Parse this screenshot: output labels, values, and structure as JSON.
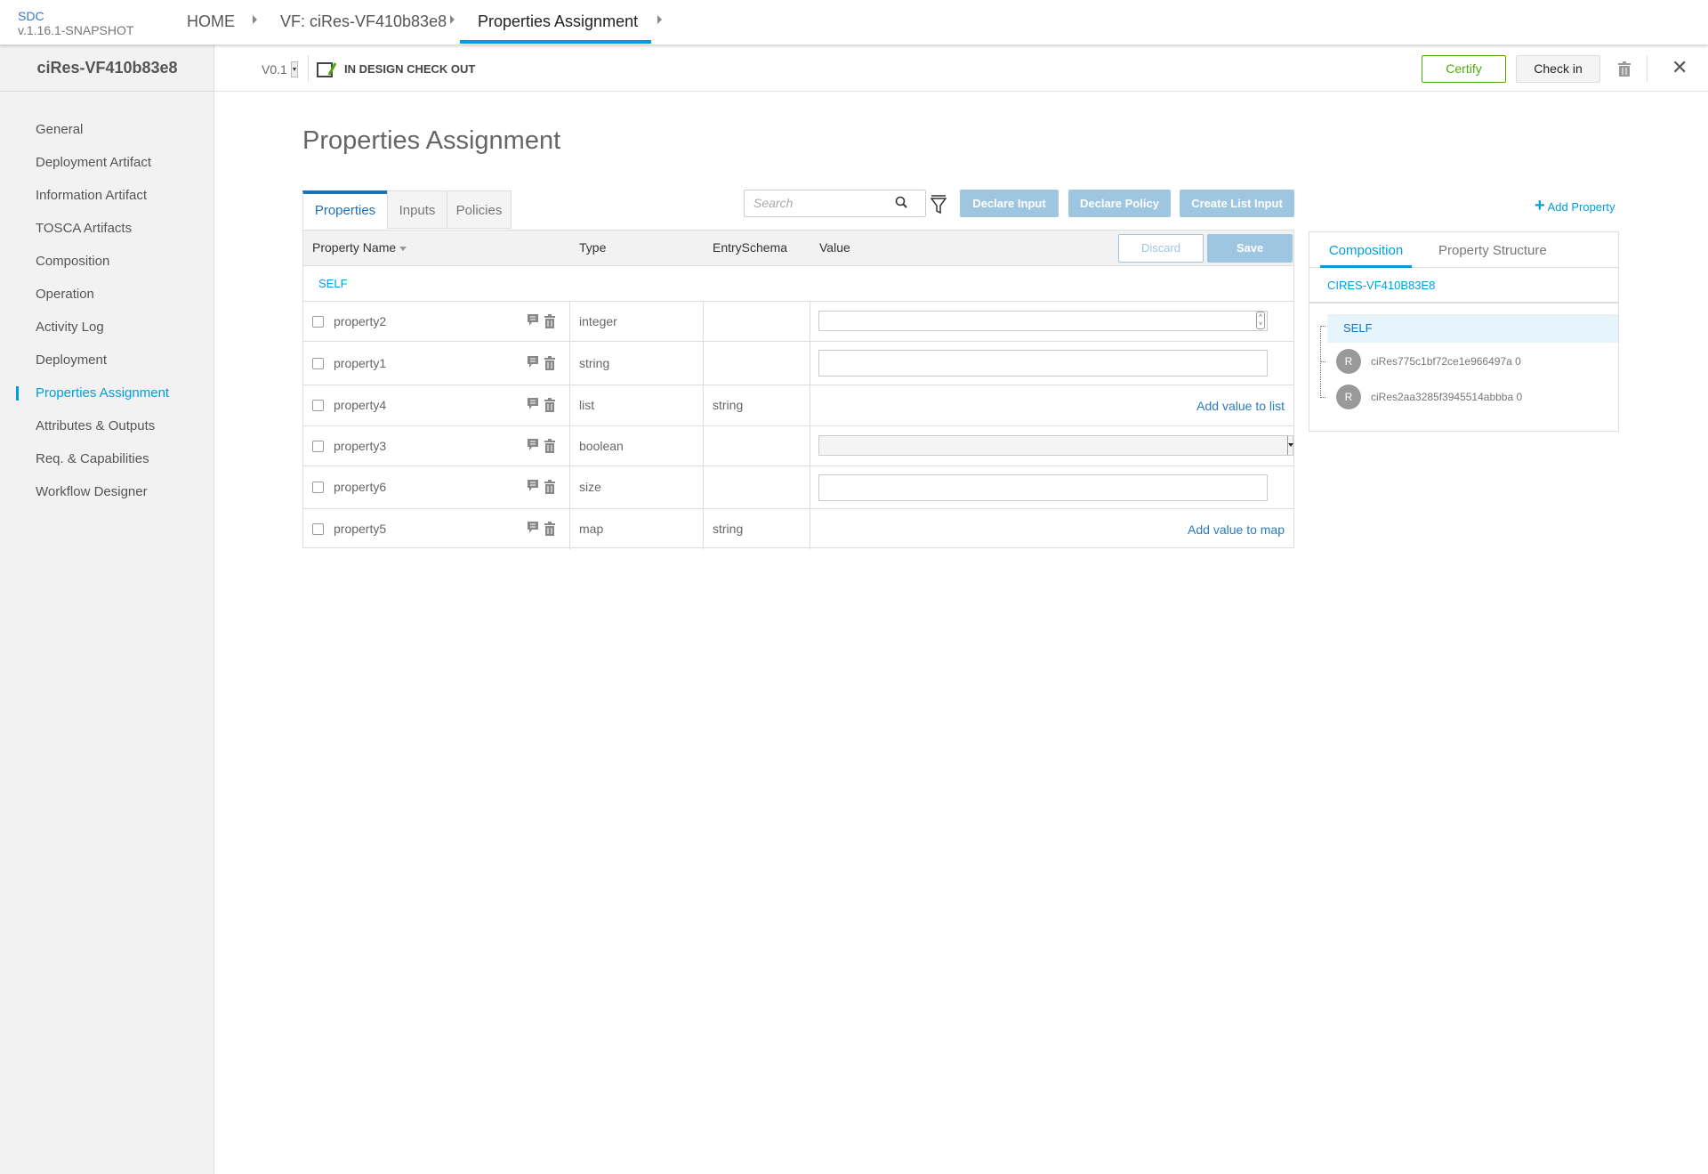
{
  "header": {
    "logo": "SDC",
    "version": "v.1.16.1-SNAPSHOT",
    "breadcrumbs": [
      "HOME",
      "VF: ciRes-VF410b83e8",
      "Properties Assignment"
    ]
  },
  "sidebar": {
    "title": "ciRes-VF410b83e8",
    "items": [
      "General",
      "Deployment Artifact",
      "Information Artifact",
      "TOSCA Artifacts",
      "Composition",
      "Operation",
      "Activity Log",
      "Deployment",
      "Properties Assignment",
      "Attributes & Outputs",
      "Req. & Capabilities",
      "Workflow Designer"
    ],
    "active": "Properties Assignment"
  },
  "subbar": {
    "version": "V0.1",
    "status": "IN DESIGN CHECK OUT",
    "certify": "Certify",
    "checkin": "Check in"
  },
  "main": {
    "title": "Properties Assignment",
    "tabs": [
      "Properties",
      "Inputs",
      "Policies"
    ],
    "search_placeholder": "Search",
    "buttons": {
      "declare_input": "Declare Input",
      "declare_policy": "Declare Policy",
      "create_list_input": "Create List Input",
      "add_property": "Add Property",
      "discard": "Discard",
      "save": "Save"
    },
    "columns": [
      "Property Name",
      "Type",
      "EntrySchema",
      "Value"
    ],
    "group": "SELF",
    "rows": [
      {
        "name": "property2",
        "type": "integer",
        "schema": "",
        "value_kind": "number"
      },
      {
        "name": "property1",
        "type": "string",
        "schema": "",
        "value_kind": "text"
      },
      {
        "name": "property4",
        "type": "list",
        "schema": "string",
        "value_kind": "link",
        "link": "Add value to list"
      },
      {
        "name": "property3",
        "type": "boolean",
        "schema": "",
        "value_kind": "select"
      },
      {
        "name": "property6",
        "type": "size",
        "schema": "",
        "value_kind": "text"
      },
      {
        "name": "property5",
        "type": "map",
        "schema": "string",
        "value_kind": "link",
        "link": "Add value to map"
      }
    ]
  },
  "right_panel": {
    "tabs": [
      "Composition",
      "Property Structure"
    ],
    "component": "CIRES-VF410B83E8",
    "tree": [
      "SELF",
      "ciRes775c1bf72ce1e966497a 0",
      "ciRes2aa3285f3945514abbba 0"
    ],
    "avatar_letter": "R"
  },
  "colors": {
    "accent": "#009fdb",
    "certify": "#4ca90c",
    "button_blue": "#9ec6e0"
  }
}
